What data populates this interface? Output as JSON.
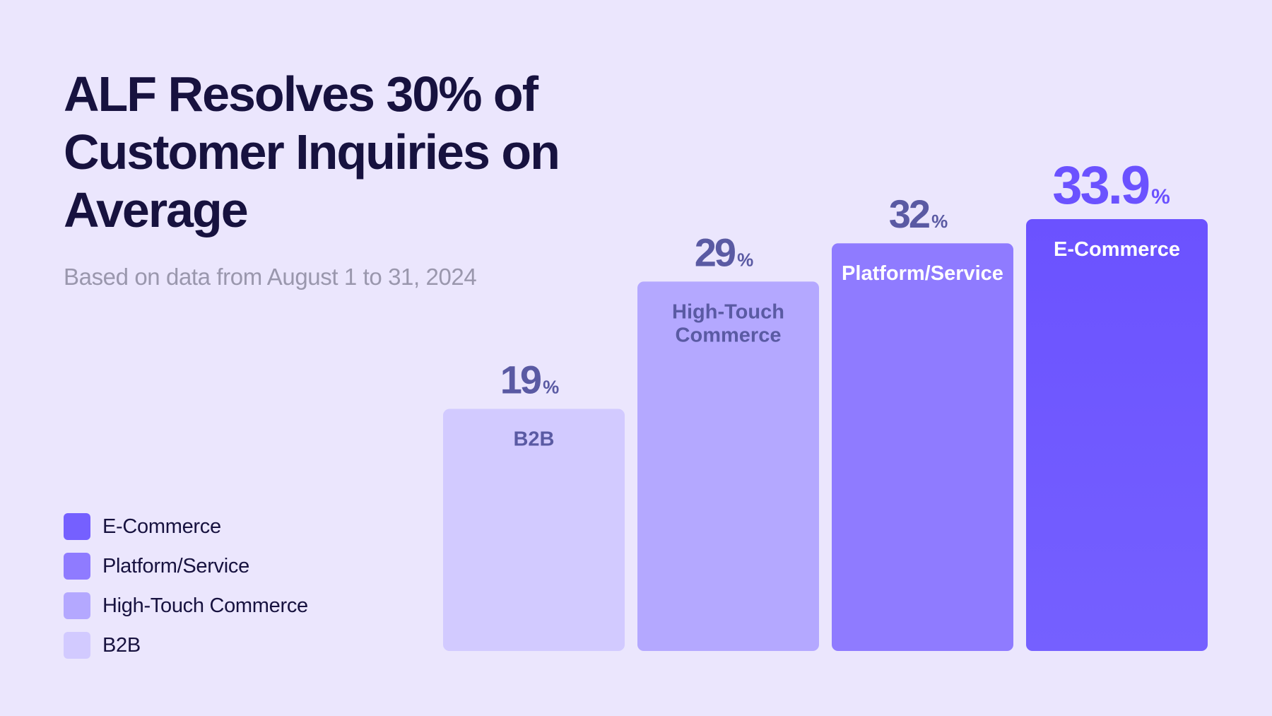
{
  "header": {
    "title": "ALF Resolves 30% of Customer Inquiries on Average",
    "subtitle": "Based on data from August 1 to 31, 2024"
  },
  "legend": [
    {
      "label": "E-Commerce",
      "color": "#7560ff"
    },
    {
      "label": "Platform/Service",
      "color": "#8f7bff"
    },
    {
      "label": "High-Touch Commerce",
      "color": "#b4a8ff"
    },
    {
      "label": "B2B",
      "color": "#d2caff"
    }
  ],
  "chart_data": {
    "type": "bar",
    "title": "ALF Resolves 30% of Customer Inquiries on Average",
    "subtitle": "Based on data from August 1 to 31, 2024",
    "xlabel": "",
    "ylabel": "",
    "unit": "%",
    "categories": [
      "B2B",
      "High-Touch Commerce",
      "Platform/Service",
      "E-Commerce"
    ],
    "values": [
      19,
      29,
      32,
      33.9
    ],
    "value_labels": [
      "19",
      "29",
      "32",
      "33.9"
    ],
    "bar_colors": [
      "#d2caff",
      "#b4a8ff",
      "#8f7bff",
      "#6b52ff"
    ],
    "category_text_colors": [
      "#5a5aa3",
      "#5a5aa3",
      "#ffffff",
      "#ffffff"
    ],
    "value_text_colors": [
      "#5a5aa3",
      "#5a5aa3",
      "#5a5aa3",
      "#6b52ff"
    ],
    "grid": false,
    "legend_position": "bottom-left"
  }
}
